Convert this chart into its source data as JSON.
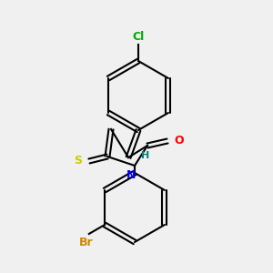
{
  "background_color": "#f0f0f0",
  "bond_color": "#000000",
  "atom_colors": {
    "Cl": "#00aa00",
    "H": "#008080",
    "S": "#cccc00",
    "N": "#0000ff",
    "O": "#ff0000",
    "Br": "#cc8800"
  },
  "figsize": [
    3.0,
    3.0
  ],
  "dpi": 100
}
